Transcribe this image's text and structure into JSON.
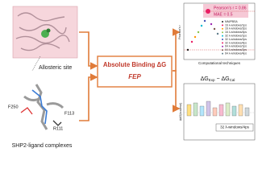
{
  "left_top": {
    "label": "Allosteric site"
  },
  "left_bottom": {
    "label": "SHP2-ligand complexes",
    "residues": [
      "F250",
      "F113",
      "R111"
    ]
  },
  "center": {
    "line1": "Absolute Binding ΔG",
    "line2": "FEP"
  },
  "scatter": {
    "stats": [
      "Pearson's r = 0.86",
      "MAE = 0.5"
    ],
    "y_label": "Pearson's r",
    "x_label": "Computational techniques",
    "legend": [
      "MM/PBSA",
      "16 λ-windows/1ps",
      "16 λ-windows/2ps",
      "16 λ-windows/4ps",
      "32 λ-windows/1ps",
      "32 λ-windows/2ps",
      "32 λ-windows/4ps",
      "64 λ-windows/1ps",
      "64 λ-windows/2ps",
      "64 λ-windows/4ps"
    ]
  },
  "boxplot": {
    "title": [
      "ΔG",
      "Exp",
      " − ΔG",
      "Cal"
    ],
    "y_label": "ΔΔG(kcal/mol)",
    "highlight": "32 λ-windows/4ps"
  }
}
